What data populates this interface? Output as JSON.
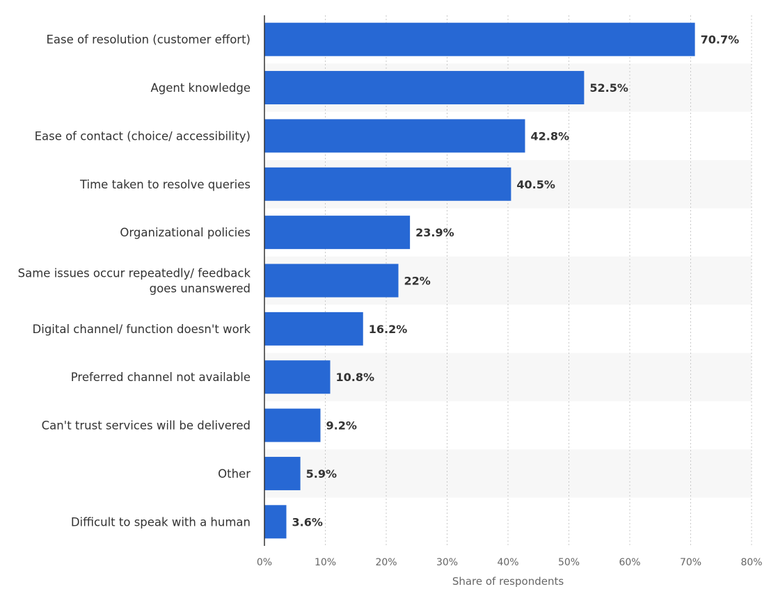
{
  "chart_data": {
    "type": "bar",
    "orientation": "horizontal",
    "categories": [
      [
        "Ease of resolution (customer effort)"
      ],
      [
        "Agent knowledge"
      ],
      [
        "Ease of contact (choice/ accessibility)"
      ],
      [
        "Time taken to resolve queries"
      ],
      [
        "Organizational policies"
      ],
      [
        "Same issues occur repeatedly/ feedback",
        "goes unanswered"
      ],
      [
        "Digital channel/ function doesn't work"
      ],
      [
        "Preferred channel not available"
      ],
      [
        "Can't trust services will be delivered"
      ],
      [
        "Other"
      ],
      [
        "Difficult to speak with a human"
      ]
    ],
    "values": [
      70.7,
      52.5,
      42.8,
      40.5,
      23.9,
      22,
      16.2,
      10.8,
      9.2,
      5.9,
      3.6
    ],
    "value_labels": [
      "70.7%",
      "52.5%",
      "42.8%",
      "40.5%",
      "23.9%",
      "22%",
      "16.2%",
      "10.8%",
      "9.2%",
      "5.9%",
      "3.6%"
    ],
    "xlim": [
      0,
      80
    ],
    "xticks": [
      0,
      10,
      20,
      30,
      40,
      50,
      60,
      70,
      80
    ],
    "xtick_labels": [
      "0%",
      "10%",
      "20%",
      "30%",
      "40%",
      "50%",
      "60%",
      "70%",
      "80%"
    ],
    "xlabel": "Share of respondents",
    "grid": "vertical dotted",
    "bar_color": "#2768d4",
    "band_color": "#f7f7f7"
  }
}
